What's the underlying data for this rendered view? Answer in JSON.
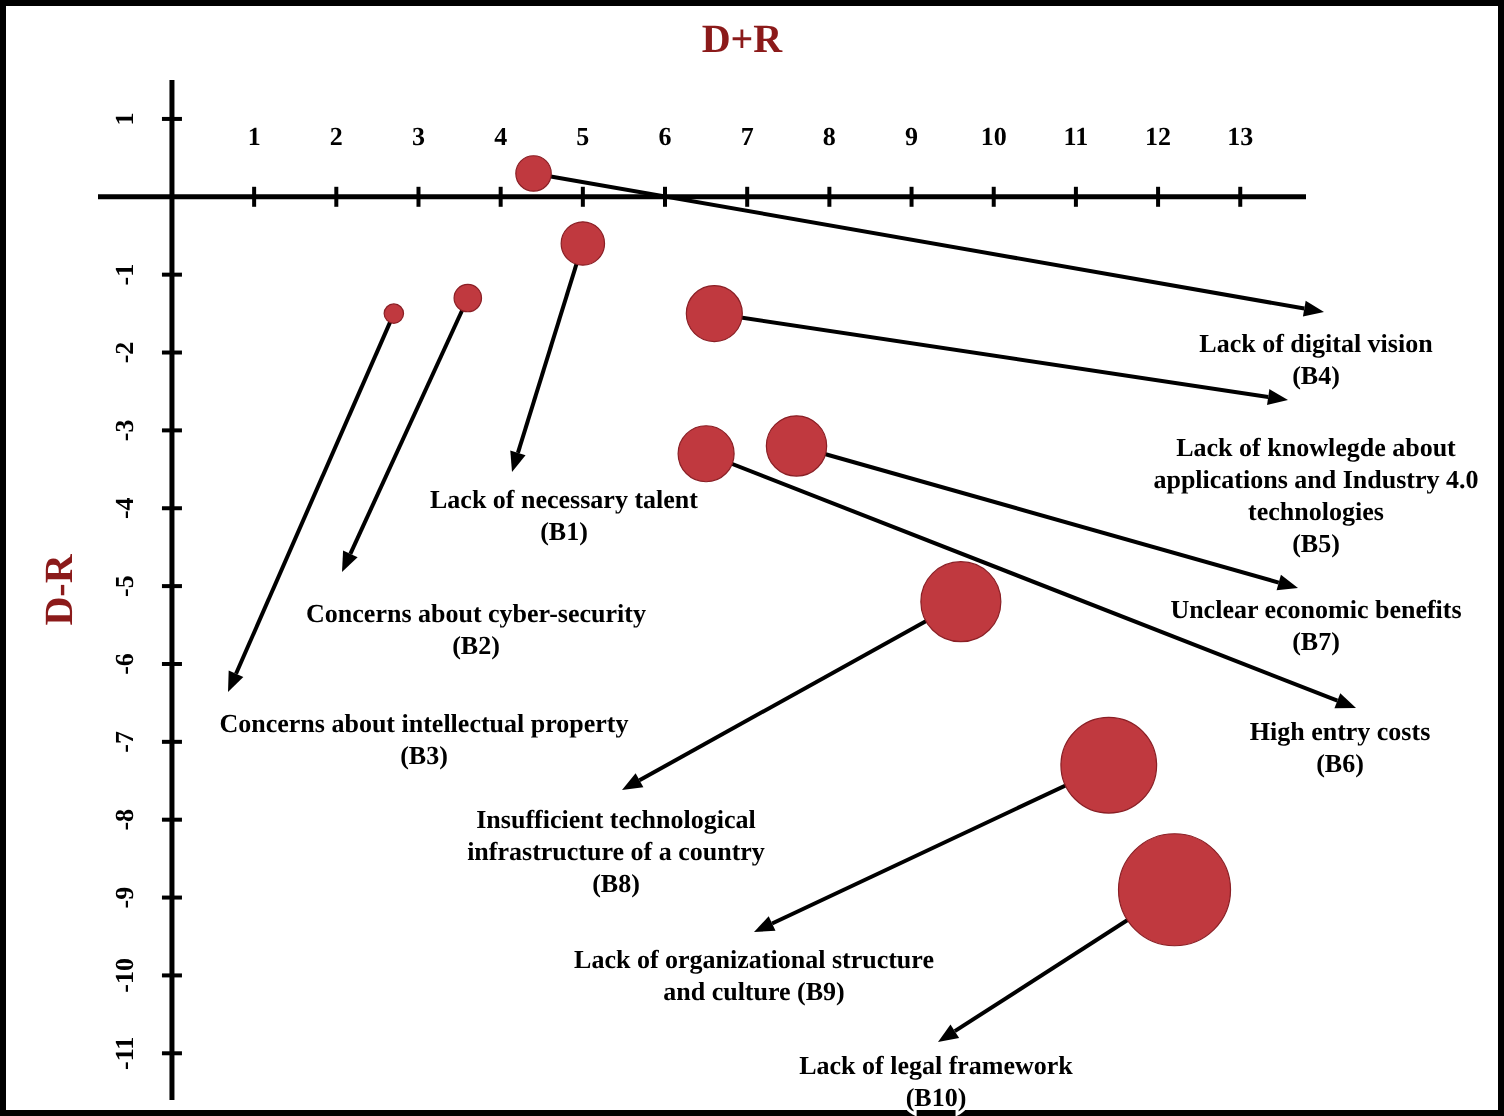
{
  "chart_data": {
    "type": "bubble",
    "xlabel": "D+R",
    "ylabel": "D-R",
    "x": [
      5.0,
      3.6,
      2.7,
      4.4,
      6.6,
      6.5,
      7.6,
      9.6,
      11.4,
      12.2
    ],
    "values": [
      -0.6,
      -1.3,
      -1.5,
      0.3,
      -1.5,
      -3.3,
      -3.2,
      -5.2,
      -7.3,
      -8.9
    ],
    "sizes": [
      0.15,
      0.06,
      0.03,
      0.1,
      0.25,
      0.25,
      0.29,
      0.51,
      0.73,
      1
    ],
    "color": "#c0393f",
    "marker": "circle",
    "grid": false,
    "xlim": [
      -0.9,
      13.8
    ],
    "ylim": [
      -11.6,
      1.5
    ],
    "xticks": [
      1,
      2,
      3,
      4,
      5,
      6,
      7,
      8,
      9,
      10,
      11,
      12,
      13
    ],
    "yticks": [
      1,
      -1,
      -2,
      -3,
      -4,
      -5,
      -6,
      -7,
      -8,
      -9,
      -10,
      -11
    ],
    "annotations": [
      "Lack of necessary talent\n(B1)",
      "Concerns about cyber-security\n(B2)",
      "Concerns about intellectual property\n(B3)",
      "Lack of digital vision\n(B4)",
      "Lack of knowlegde about\napplications and Industry 4.0\ntechnologies\n(B5)",
      "High entry costs\n(B6)",
      "Unclear economic benefits\n(B7)",
      "Insufficient technological\ninfrastructure of a country\n(B8)",
      "Lack of organizational structure\nand culture (B9)",
      "Lack of legal framework\n(B10)"
    ]
  }
}
